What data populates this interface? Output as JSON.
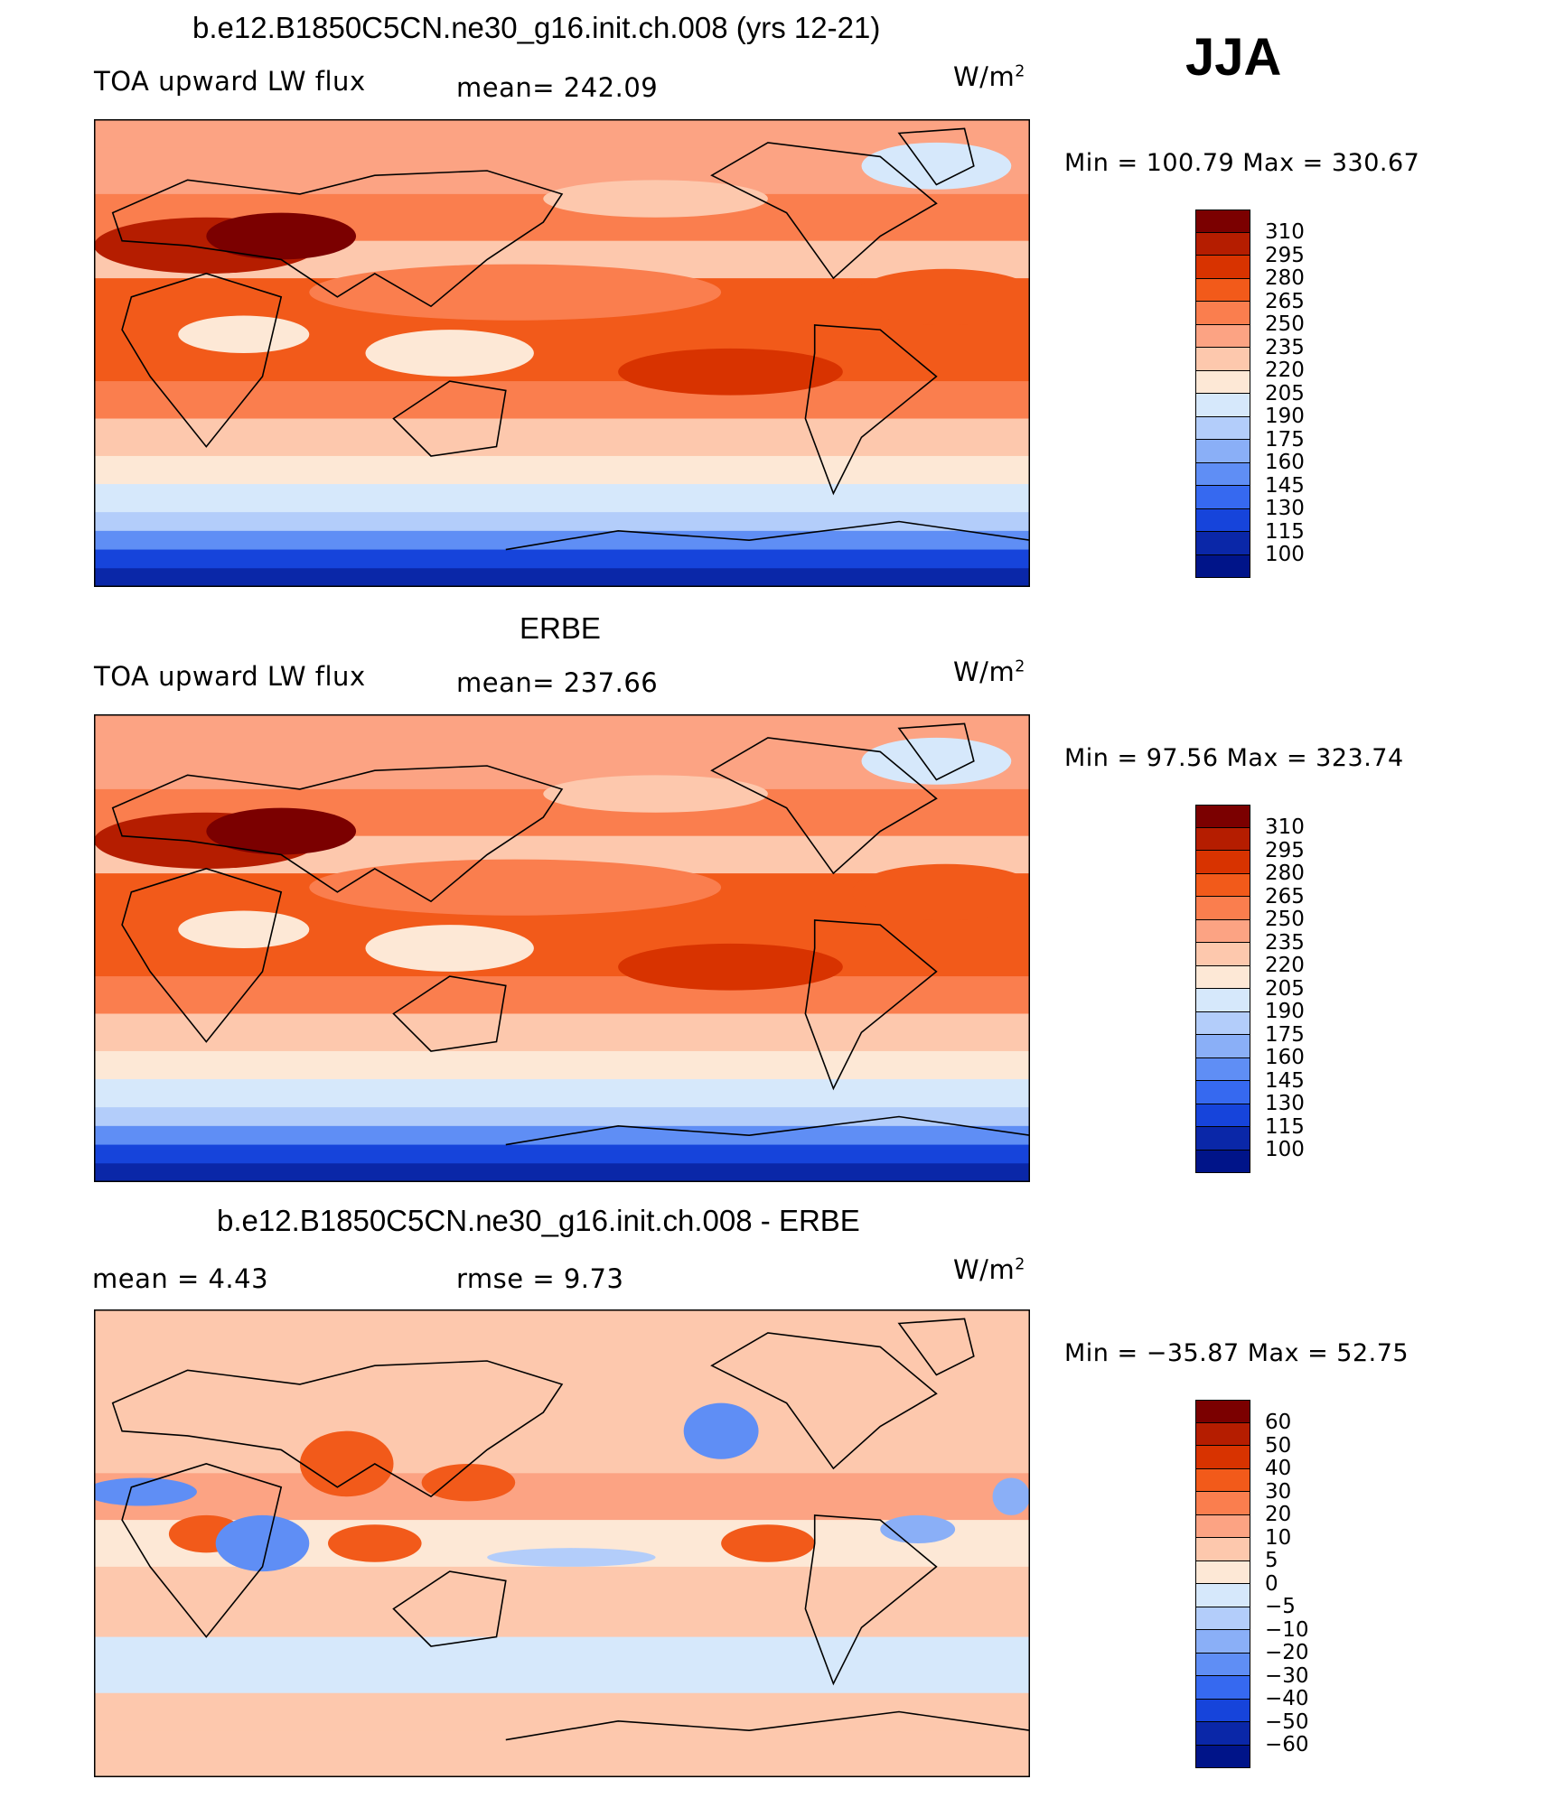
{
  "season": "JJA",
  "units": "W/m",
  "units_sup": "2",
  "panels": [
    {
      "title": "b.e12.B1850C5CN.ne30_g16.init.ch.008 (yrs 12-21)",
      "left_label": "TOA upward LW flux",
      "mid_label": "mean=  242.09",
      "minmax": "Min  =  100.79  Max  =  330.67",
      "levels": [
        "310",
        "295",
        "280",
        "265",
        "250",
        "235",
        "220",
        "205",
        "190",
        "175",
        "160",
        "145",
        "130",
        "115",
        "100"
      ],
      "colors": [
        "#7b0000",
        "#b51d00",
        "#d83300",
        "#f25a1a",
        "#fa7e4e",
        "#fca383",
        "#fdc8ad",
        "#fde8d6",
        "#d6e8fb",
        "#b3cdfa",
        "#8aaff7",
        "#5f8ef5",
        "#3669f0",
        "#1644db",
        "#0a27a8",
        "#001489"
      ]
    },
    {
      "title": "ERBE",
      "left_label": "TOA upward LW flux",
      "mid_label": "mean=  237.66",
      "minmax": "Min  =   97.56  Max  =  323.74",
      "levels": [
        "310",
        "295",
        "280",
        "265",
        "250",
        "235",
        "220",
        "205",
        "190",
        "175",
        "160",
        "145",
        "130",
        "115",
        "100"
      ],
      "colors": [
        "#7b0000",
        "#b51d00",
        "#d83300",
        "#f25a1a",
        "#fa7e4e",
        "#fca383",
        "#fdc8ad",
        "#fde8d6",
        "#d6e8fb",
        "#b3cdfa",
        "#8aaff7",
        "#5f8ef5",
        "#3669f0",
        "#1644db",
        "#0a27a8",
        "#001489"
      ]
    },
    {
      "title": "b.e12.B1850C5CN.ne30_g16.init.ch.008 - ERBE",
      "left_label": "mean =     4.43",
      "mid_label": "rmse =     9.73",
      "minmax": "Min  =  −35.87  Max  =    52.75",
      "levels": [
        "60",
        "50",
        "40",
        "30",
        "20",
        "10",
        "5",
        "0",
        "−5",
        "−10",
        "−20",
        "−30",
        "−40",
        "−50",
        "−60"
      ],
      "colors": [
        "#7b0000",
        "#b51d00",
        "#d83300",
        "#f25a1a",
        "#fa7e4e",
        "#fca383",
        "#fdc8ad",
        "#fde8d6",
        "#d6e8fb",
        "#b3cdfa",
        "#8aaff7",
        "#5f8ef5",
        "#3669f0",
        "#1644db",
        "#0a27a8",
        "#001489"
      ]
    }
  ],
  "chart_data": [
    {
      "type": "heatmap",
      "title": "b.e12.B1850C5CN.ne30_g16.init.ch.008 (yrs 12-21)",
      "variable": "TOA upward LW flux",
      "units": "W/m2",
      "mean": 242.09,
      "min": 100.79,
      "max": 330.67,
      "contour_levels": [
        100,
        115,
        130,
        145,
        160,
        175,
        190,
        205,
        220,
        235,
        250,
        265,
        280,
        295,
        310
      ]
    },
    {
      "type": "heatmap",
      "title": "ERBE",
      "variable": "TOA upward LW flux",
      "units": "W/m2",
      "mean": 237.66,
      "min": 97.56,
      "max": 323.74,
      "contour_levels": [
        100,
        115,
        130,
        145,
        160,
        175,
        190,
        205,
        220,
        235,
        250,
        265,
        280,
        295,
        310
      ]
    },
    {
      "type": "heatmap",
      "title": "b.e12.B1850C5CN.ne30_g16.init.ch.008 - ERBE",
      "units": "W/m2",
      "mean": 4.43,
      "rmse": 9.73,
      "min": -35.87,
      "max": 52.75,
      "contour_levels": [
        -60,
        -50,
        -40,
        -30,
        -20,
        -10,
        -5,
        0,
        5,
        10,
        20,
        30,
        40,
        50,
        60
      ]
    }
  ]
}
